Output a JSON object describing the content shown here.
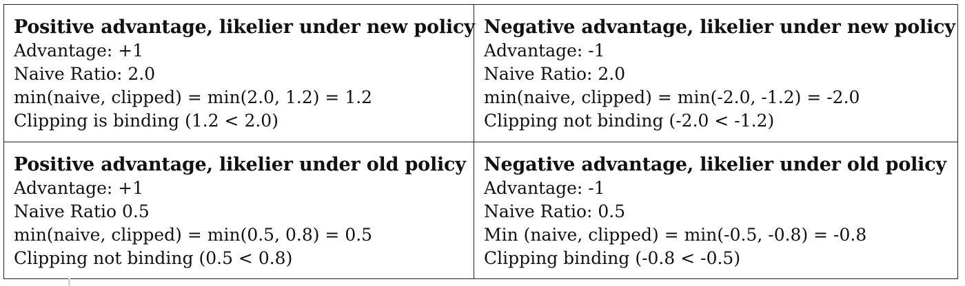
{
  "cells": [
    {
      "title": "Positive advantage, likelier under new policy",
      "lines": [
        "Advantage: +1",
        "Naive Ratio: 2.0",
        "min(naive, clipped) = min(2.0, 1.2) = 1.2",
        "Clipping is binding (1.2 < 2.0)"
      ]
    },
    {
      "title": "Negative advantage, likelier under new policy",
      "lines": [
        "Advantage: -1",
        "Naive Ratio: 2.0",
        "min(naive, clipped) = min(-2.0, -1.2) = -2.0",
        "Clipping not binding (-2.0 < -1.2)"
      ]
    },
    {
      "title": "Positive advantage, likelier under old policy",
      "lines": [
        "Advantage: +1",
        "Naive Ratio 0.5",
        "min(naive, clipped) = min(0.5, 0.8) = 0.5",
        "Clipping not binding (0.5 < 0.8)"
      ]
    },
    {
      "title": "Negative advantage, likelier under old policy",
      "lines": [
        "Advantage: -1",
        "Naive Ratio: 0.5",
        "Min (naive, clipped) = min(-0.5, -0.8) = -0.8",
        "Clipping binding (-0.8 < -0.5)"
      ]
    }
  ]
}
